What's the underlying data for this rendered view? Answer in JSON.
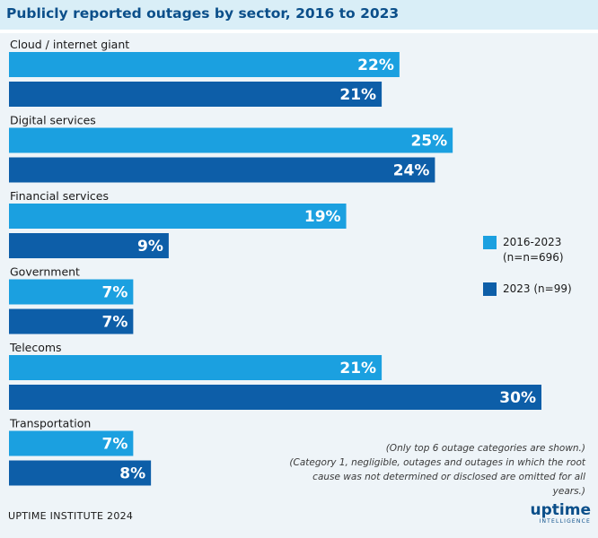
{
  "header": {
    "title": "Publicly reported outages by sector, 2016 to 2023"
  },
  "chart_data": {
    "type": "bar",
    "orientation": "horizontal",
    "title": "Publicly reported outages by sector, 2016 to 2023",
    "xlabel": "",
    "ylabel": "",
    "xlim": [
      0,
      30
    ],
    "grid": false,
    "categories": [
      "Cloud / internet giant",
      "Digital services",
      "Financial services",
      "Government",
      "Telecoms",
      "Transportation"
    ],
    "series": [
      {
        "name": "2016-2023 (n=n=696)",
        "color": "#1ba0e0",
        "values": [
          22,
          25,
          19,
          7,
          21,
          7
        ],
        "labels": [
          "22%",
          "25%",
          "19%",
          "7%",
          "21%",
          "7%"
        ]
      },
      {
        "name": "2023 (n=99)",
        "color": "#0d5ea8",
        "values": [
          21,
          24,
          9,
          7,
          30,
          8
        ],
        "labels": [
          "21%",
          "24%",
          "9%",
          "7%",
          "30%",
          "8%"
        ]
      }
    ]
  },
  "legend": {
    "items": [
      {
        "line1": "2016-2023",
        "line2": "(n=n=696)",
        "color": "#1ba0e0"
      },
      {
        "line1": "2023 (n=99)",
        "line2": "",
        "color": "#0d5ea8"
      }
    ]
  },
  "notes": {
    "line1": "(Only top 6 outage categories are shown.)",
    "line2": "(Category 1, negligible, outages and outages in which the root",
    "line3": "cause was not determined or disclosed are omitted for all years.)"
  },
  "footer": {
    "source": "UPTIME INSTITUTE 2024",
    "brand_main": "uptime",
    "brand_sub": "INTELLIGENCE"
  }
}
